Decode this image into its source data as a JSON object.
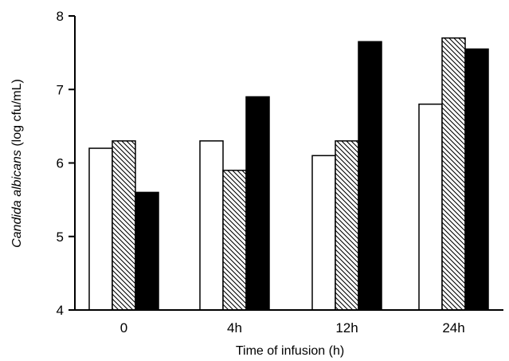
{
  "chart_data": {
    "type": "bar",
    "categories": [
      "0",
      "4h",
      "12h",
      "24h"
    ],
    "series": [
      {
        "values": [
          6.2,
          6.3,
          6.1,
          6.8
        ],
        "fill": "white"
      },
      {
        "values": [
          6.3,
          5.9,
          6.3,
          7.7
        ],
        "fill": "hatched"
      },
      {
        "values": [
          5.6,
          6.9,
          7.65,
          7.55
        ],
        "fill": "black"
      }
    ],
    "xlabel": "Time of infusion (h)",
    "ylabel_italic": "Candida albicans",
    "ylabel_rest": " (log cfu/mL)",
    "ylim": [
      4,
      8
    ],
    "yticks": [
      "4",
      "5",
      "6",
      "7",
      "8"
    ],
    "grid": false,
    "legend": "none"
  }
}
